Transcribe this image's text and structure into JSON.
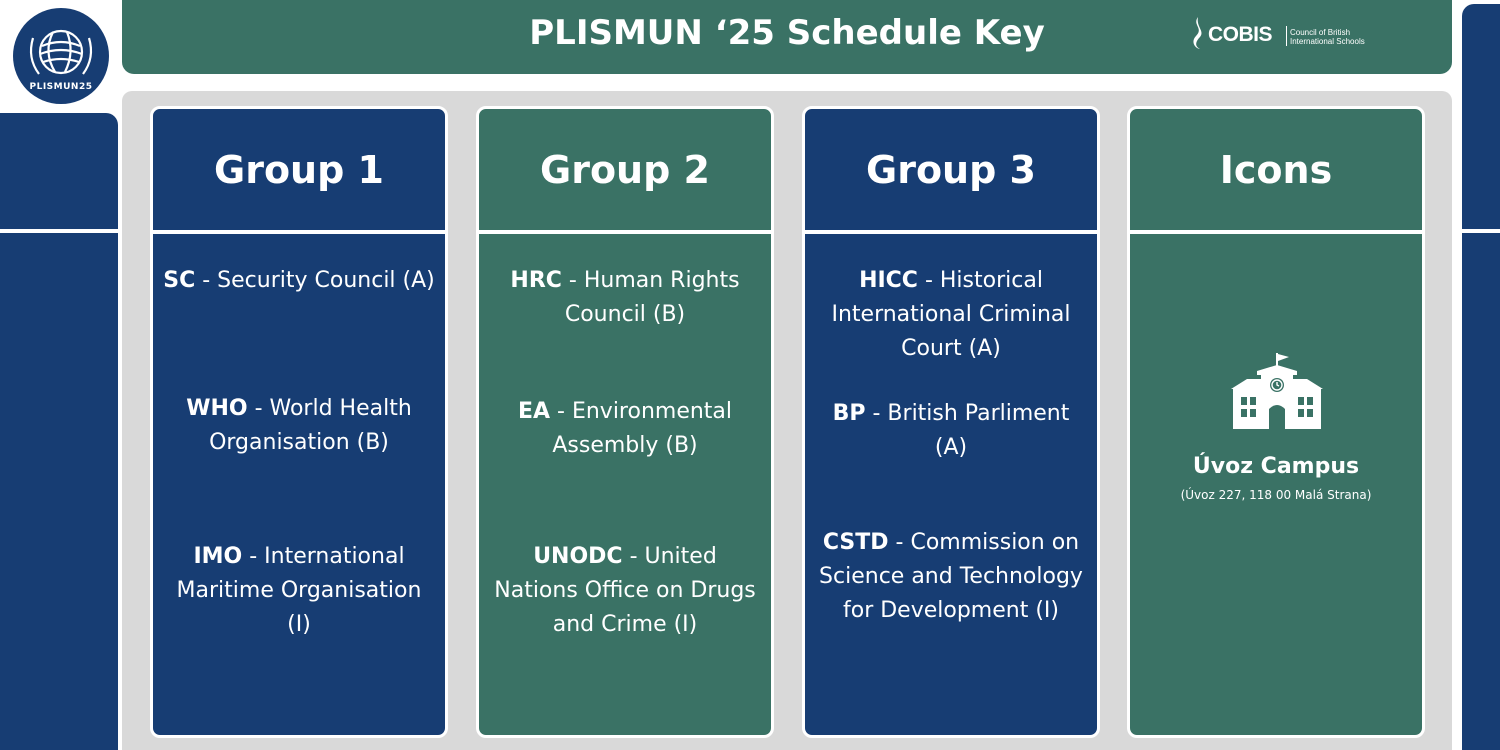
{
  "header": {
    "title": "PLISMUN ‘25 Schedule Key",
    "logo_text": "PLISMUN25",
    "partner": {
      "name": "COBIS",
      "subtitle": "Council of British\nInternational Schools"
    }
  },
  "groups": [
    {
      "title": "Group 1",
      "items": [
        {
          "abbr": "SC",
          "name": " - Security Council (A)"
        },
        {
          "abbr": "WHO",
          "name": " - World Health Organisation (B)"
        },
        {
          "abbr": "IMO",
          "name": " - International Maritime Organisation (I)"
        }
      ]
    },
    {
      "title": "Group 2",
      "items": [
        {
          "abbr": "HRC",
          "name": " - Human Rights Council (B)"
        },
        {
          "abbr": "EA",
          "name": " - Environmental Assembly (B)"
        },
        {
          "abbr": "UNODC",
          "name": " - United Nations Office on Drugs and Crime (I)"
        }
      ]
    },
    {
      "title": "Group 3",
      "items": [
        {
          "abbr": "HICC",
          "name": " - Historical International Criminal Court (A)"
        },
        {
          "abbr": "BP",
          "name": " - British Parliment (A)"
        },
        {
          "abbr": "CSTD",
          "name": " - Commission on Science and Technology for Development (I)"
        }
      ]
    }
  ],
  "icons": {
    "title": "Icons",
    "campus": {
      "icon": "school-building-icon",
      "name": "Úvoz Campus",
      "address": "(Úvoz 227, 118 00 Malá Strana)"
    }
  },
  "colors": {
    "navy": "#173d73",
    "green": "#3a7265",
    "panel": "#d9d9d9",
    "white": "#ffffff"
  }
}
